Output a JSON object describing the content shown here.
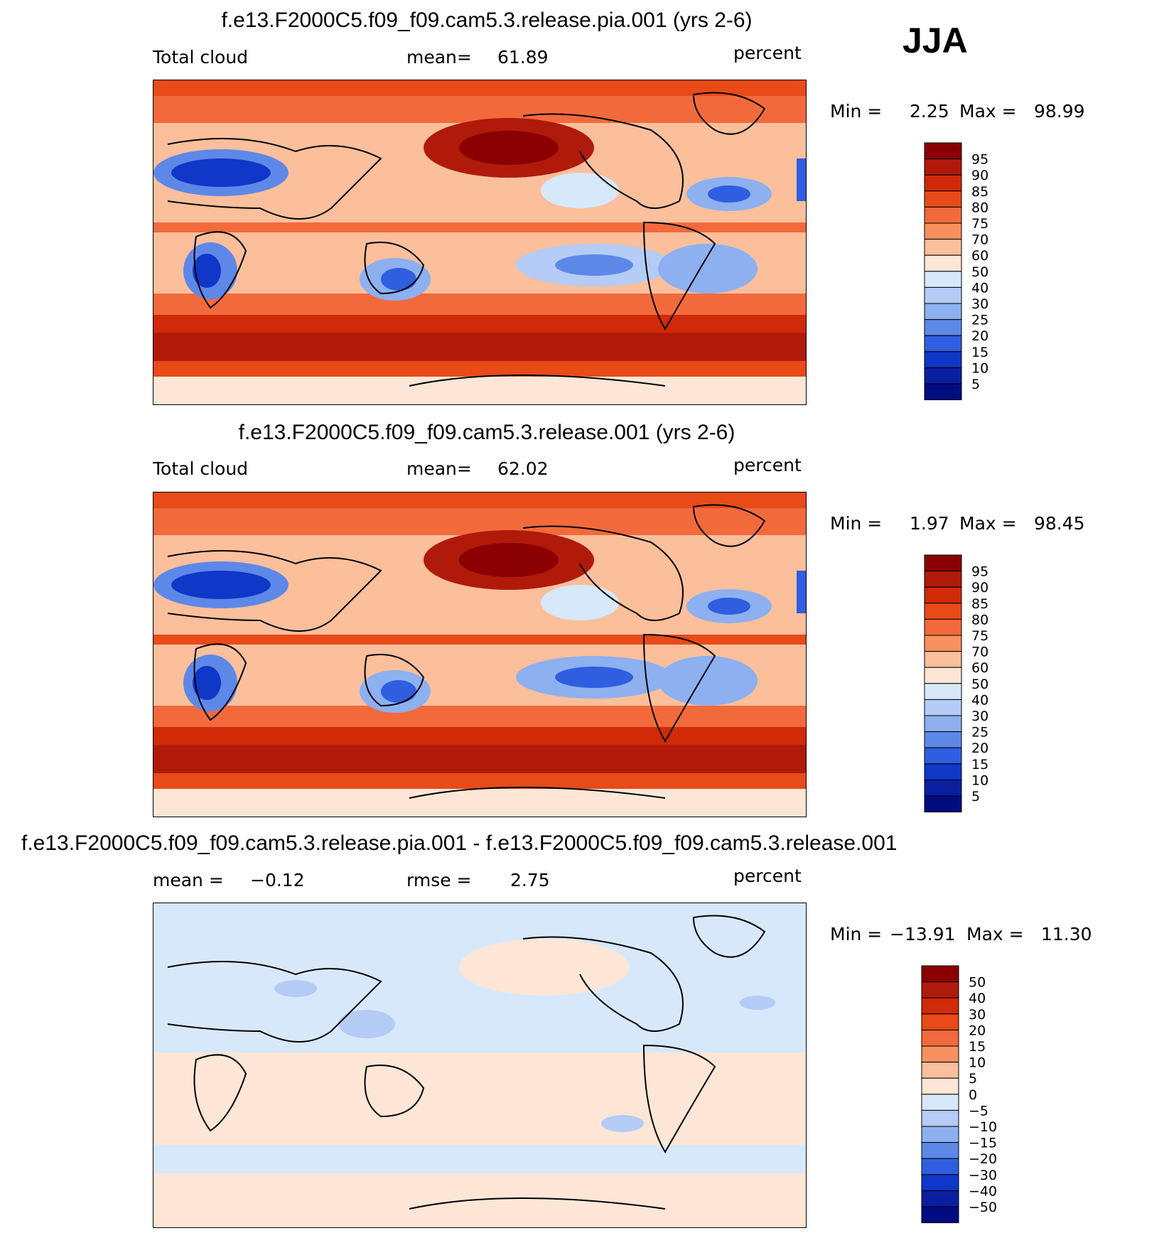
{
  "season": "JJA",
  "panels": [
    {
      "title": "f.e13.F2000C5.f09_f09.cam5.3.release.pia.001 (yrs 2-6)",
      "left_label": "Total cloud",
      "mean_label": "mean=",
      "mean_value": "61.89",
      "units": "percent",
      "min_label": "Min =",
      "min_value": "2.25",
      "max_label": "Max =",
      "max_value": "98.99",
      "colorbar_labels": [
        "95",
        "90",
        "85",
        "80",
        "75",
        "70",
        "60",
        "50",
        "40",
        "30",
        "25",
        "20",
        "15",
        "10",
        "5"
      ]
    },
    {
      "title": "f.e13.F2000C5.f09_f09.cam5.3.release.001 (yrs 2-6)",
      "left_label": "Total cloud",
      "mean_label": "mean=",
      "mean_value": "62.02",
      "units": "percent",
      "min_label": "Min =",
      "min_value": "1.97",
      "max_label": "Max =",
      "max_value": "98.45",
      "colorbar_labels": [
        "95",
        "90",
        "85",
        "80",
        "75",
        "70",
        "60",
        "50",
        "40",
        "30",
        "25",
        "20",
        "15",
        "10",
        "5"
      ]
    },
    {
      "title": "f.e13.F2000C5.f09_f09.cam5.3.release.pia.001 - f.e13.F2000C5.f09_f09.cam5.3.release.001",
      "mean_label": "mean =",
      "mean_value": "−0.12",
      "rmse_label": "rmse =",
      "rmse_value": "2.75",
      "units": "percent",
      "min_label": "Min =",
      "min_value": "−13.91",
      "max_label": "Max =",
      "max_value": "11.30",
      "colorbar_labels": [
        "50",
        "40",
        "30",
        "20",
        "15",
        "10",
        "5",
        "0",
        "−5",
        "−10",
        "−15",
        "−20",
        "−30",
        "−40",
        "−50"
      ]
    }
  ],
  "colors": {
    "scale": [
      "#8b0000",
      "#b01a0a",
      "#d02a08",
      "#e84a18",
      "#f26a3c",
      "#f89060",
      "#fbbf9c",
      "#fde6d6",
      "#d8e8fb",
      "#b4ccf6",
      "#8db0f0",
      "#5e88e8",
      "#2f5ee0",
      "#0f37c8",
      "#0a1fa0",
      "#000c80"
    ],
    "land_outline": "#000000"
  }
}
